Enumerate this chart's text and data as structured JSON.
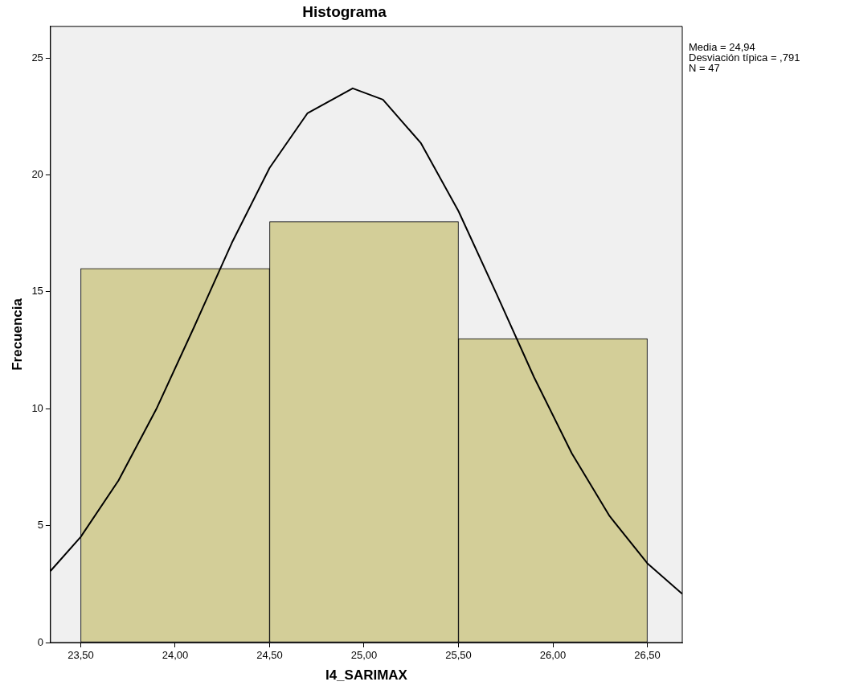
{
  "chart_data": {
    "type": "histogram",
    "title": "Histograma",
    "xlabel": "I4_SARIMAX",
    "ylabel": "Frecuencia",
    "bins": [
      23.5,
      24.5,
      25.5,
      26.5
    ],
    "values": [
      16,
      18,
      13
    ],
    "color": "#d3ce98",
    "series": [
      {
        "type": "line",
        "color": "#000000",
        "x": [
          23.34,
          23.5,
          23.7,
          23.9,
          24.1,
          24.3,
          24.5,
          24.7,
          24.94,
          25.1,
          25.3,
          25.5,
          25.7,
          25.9,
          26.1,
          26.3,
          26.5,
          26.685
        ],
        "values": [
          3.06,
          4.52,
          6.93,
          9.98,
          13.49,
          17.09,
          20.3,
          22.63,
          23.7,
          23.22,
          21.37,
          18.45,
          14.94,
          11.35,
          8.09,
          5.41,
          3.39,
          2.08
        ]
      }
    ],
    "xlim": [
      23.34,
      26.685
    ],
    "xticks": [
      {
        "value": 23.5,
        "label": "23,50"
      },
      {
        "value": 24,
        "label": "24,00"
      },
      {
        "value": 24.5,
        "label": "24,50"
      },
      {
        "value": 25,
        "label": "25,00"
      },
      {
        "value": 25.5,
        "label": "25,50"
      },
      {
        "value": 26,
        "label": "26,00"
      },
      {
        "value": 26.5,
        "label": "26,50"
      }
    ],
    "ylim": [
      0,
      26.35
    ],
    "yticks": [
      0,
      5,
      10,
      15,
      20,
      25
    ],
    "grid": false,
    "legend": false,
    "annotations": [
      "Media = 24,94",
      "Desviación típica = ,791",
      "N = 47"
    ]
  }
}
